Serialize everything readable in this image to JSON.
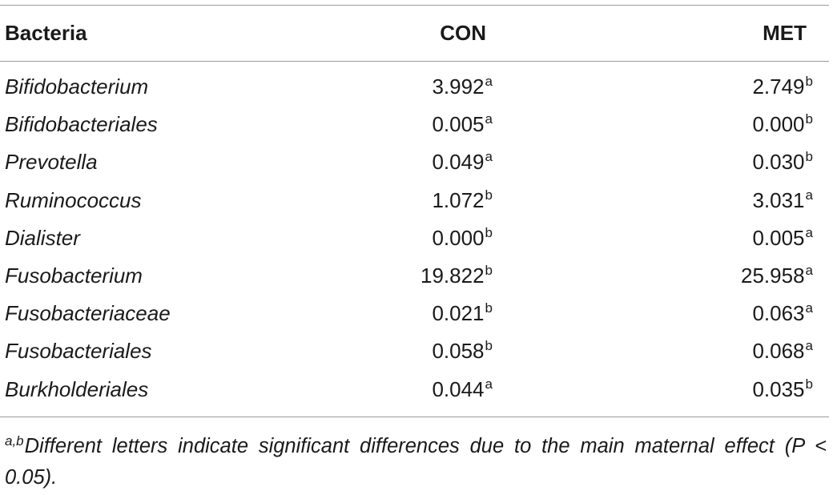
{
  "table": {
    "headers": {
      "bacteria": "Bacteria",
      "con": "CON",
      "met": "MET"
    },
    "rows": [
      {
        "name": "Bifidobacterium",
        "con": "3.992",
        "con_sup": "a",
        "met": "2.749",
        "met_sup": "b"
      },
      {
        "name": "Bifidobacteriales",
        "con": "0.005",
        "con_sup": "a",
        "met": "0.000",
        "met_sup": "b"
      },
      {
        "name": "Prevotella",
        "con": "0.049",
        "con_sup": "a",
        "met": "0.030",
        "met_sup": "b"
      },
      {
        "name": "Ruminococcus",
        "con": "1.072",
        "con_sup": "b",
        "met": "3.031",
        "met_sup": "a"
      },
      {
        "name": "Dialister",
        "con": "0.000",
        "con_sup": "b",
        "met": "0.005",
        "met_sup": "a"
      },
      {
        "name": "Fusobacterium",
        "con": "19.822",
        "con_sup": "b",
        "met": "25.958",
        "met_sup": "a"
      },
      {
        "name": "Fusobacteriaceae",
        "con": "0.021",
        "con_sup": "b",
        "met": "0.063",
        "met_sup": "a"
      },
      {
        "name": "Fusobacteriales",
        "con": "0.058",
        "con_sup": "b",
        "met": "0.068",
        "met_sup": "a"
      },
      {
        "name": "Burkholderiales",
        "con": "0.044",
        "con_sup": "a",
        "met": "0.035",
        "met_sup": "b"
      }
    ]
  },
  "footnote": {
    "marker": "a,b",
    "text": "Different letters indicate significant differences due to the main maternal effect (P < 0.05)."
  }
}
